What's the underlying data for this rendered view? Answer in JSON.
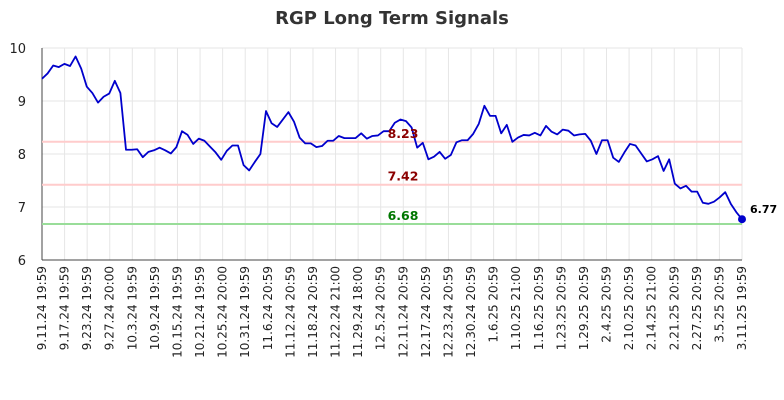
{
  "chart_data": {
    "type": "line",
    "title": "RGP Long Term Signals",
    "xlabel": "",
    "ylabel": "",
    "ylim": [
      6,
      10
    ],
    "y_ticks": [
      6,
      7,
      8,
      9,
      10
    ],
    "grid": true,
    "x_tick_labels": [
      "9.11.24 19:59",
      "9.17.24 19:59",
      "9.23.24 19:59",
      "9.27.24 20:00",
      "10.3.24 19:59",
      "10.9.24 19:59",
      "10.15.24 19:59",
      "10.21.24 19:59",
      "10.25.24 20:00",
      "10.31.24 19:59",
      "11.6.24 20:59",
      "11.12.24 20:59",
      "11.18.24 20:59",
      "11.22.24 21:00",
      "11.29.24 18:00",
      "12.5.24 20:59",
      "12.11.24 20:59",
      "12.17.24 20:59",
      "12.23.24 20:59",
      "12.30.24 20:59",
      "1.6.25 20:59",
      "1.10.25 21:00",
      "1.16.25 20:59",
      "1.23.25 20:59",
      "1.29.25 20:59",
      "2.4.25 20:59",
      "2.10.25 20:59",
      "2.14.25 21:00",
      "2.21.25 20:59",
      "2.27.25 20:59",
      "3.5.25 20:59",
      "3.11.25 19:59"
    ],
    "series": [
      {
        "color": "#0000cc",
        "values": [
          9.42,
          9.52,
          9.67,
          9.64,
          9.7,
          9.66,
          9.84,
          9.61,
          9.27,
          9.15,
          8.97,
          9.08,
          9.14,
          9.38,
          9.15,
          8.08,
          8.08,
          8.09,
          7.94,
          8.04,
          8.07,
          8.12,
          8.07,
          8.01,
          8.13,
          8.43,
          8.36,
          8.19,
          8.29,
          8.25,
          8.14,
          8.03,
          7.89,
          8.06,
          8.16,
          8.16,
          7.79,
          7.69,
          7.85,
          8.0,
          8.81,
          8.58,
          8.51,
          8.65,
          8.79,
          8.61,
          8.31,
          8.2,
          8.2,
          8.13,
          8.15,
          8.25,
          8.25,
          8.34,
          8.3,
          8.3,
          8.3,
          8.39,
          8.29,
          8.34,
          8.35,
          8.43,
          8.43,
          8.59,
          8.65,
          8.62,
          8.5,
          8.12,
          8.21,
          7.9,
          7.95,
          8.04,
          7.91,
          7.98,
          8.22,
          8.26,
          8.26,
          8.38,
          8.57,
          8.91,
          8.72,
          8.72,
          8.39,
          8.55,
          8.23,
          8.31,
          8.36,
          8.35,
          8.4,
          8.35,
          8.53,
          8.42,
          8.37,
          8.46,
          8.44,
          8.35,
          8.37,
          8.38,
          8.25,
          8.0,
          8.26,
          8.26,
          7.93,
          7.85,
          8.03,
          8.19,
          8.16,
          8.01,
          7.86,
          7.9,
          7.96,
          7.68,
          7.9,
          7.44,
          7.35,
          7.4,
          7.29,
          7.29,
          7.08,
          7.06,
          7.1,
          7.18,
          7.28,
          7.06,
          6.9,
          6.77
        ]
      }
    ],
    "reference_lines": [
      {
        "value": 8.23,
        "label": "8.23",
        "line_color": "#ffcccc",
        "label_color": "#8b0000"
      },
      {
        "value": 7.42,
        "label": "7.42",
        "line_color": "#ffcccc",
        "label_color": "#8b0000"
      },
      {
        "value": 6.68,
        "label": "6.68",
        "line_color": "#99dd99",
        "label_color": "#007700"
      }
    ],
    "last_value_label": "6.77"
  }
}
